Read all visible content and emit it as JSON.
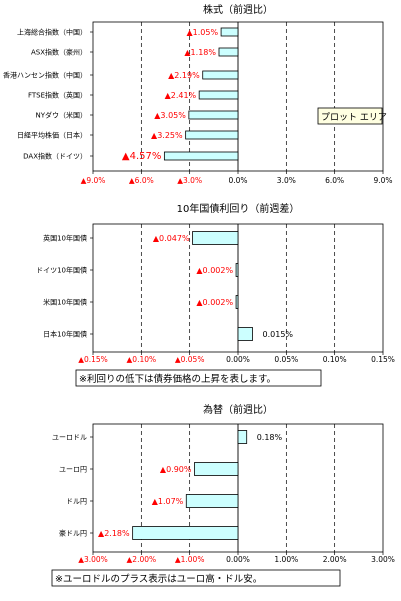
{
  "colors": {
    "bar_fill": "#ccffff",
    "bar_stroke": "#000000",
    "negative": "#ff0000",
    "positive": "#000000"
  },
  "chart_data": [
    {
      "type": "bar",
      "orientation": "horizontal",
      "title": "株式（前週比）",
      "categories": [
        "上海総合指数（中国）",
        "ASX指数（豪州）",
        "香港ハンセン指数（中国）",
        "FTSE指数（英国）",
        "NYダウ（米国）",
        "日経平均株価（日本）",
        "DAX指数（ドイツ）"
      ],
      "values": [
        -1.05,
        -1.18,
        -2.19,
        -2.41,
        -3.05,
        -3.25,
        -4.57
      ],
      "data_labels": [
        "▲1.05%",
        "▲1.18%",
        "▲2.19%",
        "▲2.41%",
        "▲3.05%",
        "▲3.25%",
        "▲4.57%"
      ],
      "xlim": [
        -9,
        9
      ],
      "ticks": [
        -9,
        -6,
        -3,
        0,
        3,
        6,
        9
      ],
      "tick_labels": [
        "▲9.0%",
        "▲6.0%",
        "▲3.0%",
        "0.0%",
        "3.0%",
        "6.0%",
        "9.0%"
      ],
      "grid": "vertical dashed",
      "annotation": "プロット エリア"
    },
    {
      "type": "bar",
      "orientation": "horizontal",
      "title": "10年国債利回り（前週差）",
      "categories": [
        "英国10年国債",
        "ドイツ10年国債",
        "米国10年国債",
        "日本10年国債"
      ],
      "values": [
        -0.047,
        -0.002,
        -0.002,
        0.015
      ],
      "data_labels": [
        "▲0.047%",
        "▲0.002%",
        "▲0.002%",
        "0.015%"
      ],
      "xlim": [
        -0.15,
        0.15
      ],
      "ticks": [
        -0.15,
        -0.1,
        -0.05,
        0,
        0.05,
        0.1,
        0.15
      ],
      "tick_labels": [
        "▲0.15%",
        "▲0.10%",
        "▲0.05%",
        "0.00%",
        "0.05%",
        "0.10%",
        "0.15%"
      ],
      "grid": "vertical dashed",
      "note": "※利回りの低下は債券価格の上昇を表します。"
    },
    {
      "type": "bar",
      "orientation": "horizontal",
      "title": "為替（前週比）",
      "categories": [
        "ユーロドル",
        "ユーロ円",
        "ドル円",
        "豪ドル円"
      ],
      "values": [
        0.18,
        -0.9,
        -1.07,
        -2.18
      ],
      "data_labels": [
        "0.18%",
        "▲0.90%",
        "▲1.07%",
        "▲2.18%"
      ],
      "xlim": [
        -3,
        3
      ],
      "ticks": [
        -3,
        -2,
        -1,
        0,
        1,
        2,
        3
      ],
      "tick_labels": [
        "▲3.00%",
        "▲2.00%",
        "▲1.00%",
        "0.00%",
        "1.00%",
        "2.00%",
        "3.00%"
      ],
      "grid": "vertical dashed",
      "note": "※ユーロドルのプラス表示はユーロ高・ドル安。"
    }
  ]
}
